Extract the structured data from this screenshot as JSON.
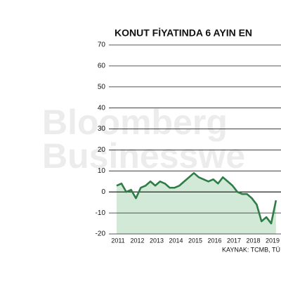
{
  "chart_data": {
    "type": "area",
    "title": "KONUT FİYATINDA 6 AYIN EN",
    "source": "KAYNAK: TCMB, TÜ",
    "watermark": [
      "Bloomberg",
      "Businesswe"
    ],
    "categories": [
      "2011",
      null,
      null,
      null,
      "2012",
      null,
      null,
      null,
      "2013",
      null,
      null,
      null,
      "2014",
      null,
      null,
      null,
      "2015",
      null,
      null,
      null,
      "2016",
      null,
      null,
      null,
      "2017",
      null,
      null,
      null,
      "2018",
      null,
      null,
      null,
      "2019",
      null
    ],
    "series": [
      {
        "color": "#2e7d46",
        "fill": "#d3e9d7",
        "values": [
          3,
          4,
          0,
          1,
          -3,
          2,
          3,
          5,
          3,
          5,
          4,
          2,
          2,
          3,
          5,
          7,
          9,
          7,
          6,
          5,
          6,
          4,
          7,
          5,
          3,
          0,
          -1,
          -1,
          -3,
          -6,
          -14,
          -12,
          -15,
          -4
        ]
      }
    ],
    "ylim": [
      -20,
      70
    ],
    "yticks": [
      -20,
      -10,
      0,
      10,
      20,
      30,
      40,
      50,
      60,
      70
    ],
    "grid": true
  }
}
